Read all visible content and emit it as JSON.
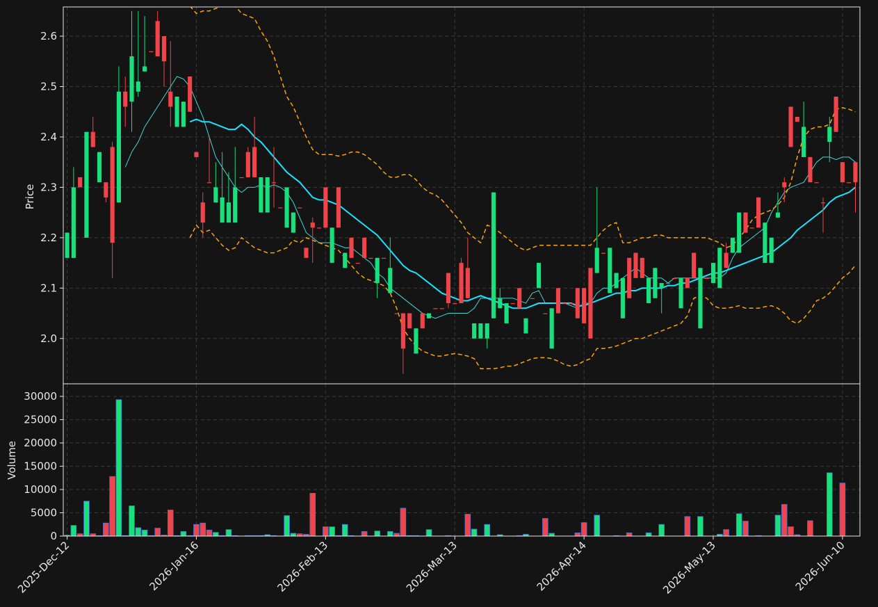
{
  "chart_data": {
    "type": "candlestick",
    "categories": [
      "2025-Dec-12",
      null,
      null,
      null,
      null,
      null,
      null,
      null,
      null,
      null,
      null,
      null,
      null,
      null,
      null,
      null,
      null,
      null,
      null,
      null,
      "2026-Jan-16",
      null,
      null,
      null,
      null,
      null,
      null,
      null,
      null,
      null,
      null,
      null,
      null,
      null,
      null,
      null,
      null,
      null,
      null,
      null,
      "2026-Feb-13",
      null,
      null,
      null,
      null,
      null,
      null,
      null,
      null,
      null,
      null,
      null,
      null,
      null,
      null,
      null,
      null,
      null,
      null,
      null,
      "2026-Mar-13",
      null,
      null,
      null,
      null,
      null,
      null,
      null,
      null,
      null,
      null,
      null,
      null,
      null,
      null,
      null,
      null,
      null,
      null,
      null,
      "2026-Apr-14",
      null,
      null,
      null,
      null,
      null,
      null,
      null,
      null,
      null,
      null,
      null,
      null,
      null,
      null,
      null,
      null,
      null,
      null,
      null,
      "2026-May-13",
      null,
      null,
      null,
      null,
      null,
      null,
      null,
      null,
      null,
      null,
      null,
      null,
      null,
      null,
      null,
      null,
      null,
      null,
      null,
      "2026-Jun-10",
      null,
      null
    ],
    "xlim": [
      -0.6,
      122.7
    ],
    "ylabel": "Price",
    "ylim": [
      1.91,
      2.658
    ],
    "yticks": [
      {
        "value": 2,
        "label": "2.0"
      },
      2.1,
      2.2,
      2.3,
      2.4,
      2.5,
      2.6
    ],
    "grid": true,
    "up_color": "#18e07d",
    "down_color": "#f0444a",
    "open": [
      2.16,
      2.16,
      2.32,
      2.2,
      2.41,
      2.31,
      2.31,
      2.38,
      2.27,
      2.49,
      2.47,
      2.49,
      2.53,
      2.57,
      2.63,
      2.6,
      2.49,
      2.42,
      2.42,
      2.52,
      2.37,
      2.27,
      2.31,
      2.27,
      2.23,
      2.23,
      2.23,
      2.32,
      2.37,
      2.38,
      2.25,
      2.25,
      2.31,
      2.26,
      2.22,
      2.21,
      2.26,
      2.18,
      2.23,
      2.22,
      2.3,
      2.15,
      2.3,
      2.14,
      2.2,
      2.15,
      2.2,
      2.16,
      2.11,
      2.16,
      2.09,
      2.05,
      2.05,
      2.05,
      1.97,
      2.05,
      2.04,
      2.06,
      2.06,
      2.13,
      2.07,
      2.15,
      2.14,
      2.0,
      2.0,
      2.0,
      2.04,
      2.06,
      2.03,
      2.07,
      2.1,
      2.01,
      2.08,
      2.1,
      2.05,
      1.98,
      2.1,
      2.07,
      2.07,
      2.1,
      2.1,
      2.14,
      2.13,
      2.17,
      2.09,
      2.1,
      2.04,
      2.16,
      2.17,
      2.16,
      2.07,
      2.08,
      2.1,
      2.11,
      2.12,
      2.06,
      2.12,
      2.17,
      2.02,
      2.12,
      2.11,
      2.1,
      2.17,
      2.17,
      2.17,
      2.25,
      2.22,
      2.28,
      2.15,
      2.15,
      2.24,
      2.31,
      2.46,
      2.44,
      2.36,
      2.36,
      2.31,
      2.27,
      2.39,
      2.48,
      2.35,
      2.31,
      2.35
    ],
    "high": [
      2.21,
      2.34,
      2.32,
      2.41,
      2.44,
      2.37,
      2.31,
      2.39,
      2.54,
      2.52,
      2.65,
      2.65,
      2.64,
      2.57,
      2.65,
      2.6,
      2.59,
      2.48,
      2.47,
      2.52,
      2.37,
      2.29,
      2.4,
      2.35,
      2.37,
      2.33,
      2.38,
      2.32,
      2.38,
      2.44,
      2.32,
      2.32,
      2.38,
      2.26,
      2.3,
      2.25,
      2.26,
      2.18,
      2.24,
      2.22,
      2.3,
      2.22,
      2.3,
      2.17,
      2.2,
      2.15,
      2.2,
      2.16,
      2.16,
      2.16,
      2.2,
      2.05,
      2.05,
      2.05,
      2.02,
      2.05,
      2.05,
      2.06,
      2.06,
      2.13,
      2.07,
      2.16,
      2.2,
      2.03,
      2.03,
      2.03,
      2.29,
      2.1,
      2.07,
      2.07,
      2.1,
      2.04,
      2.08,
      2.15,
      2.05,
      2.06,
      2.1,
      2.07,
      2.07,
      2.1,
      2.1,
      2.14,
      2.3,
      2.17,
      2.18,
      2.13,
      2.12,
      2.16,
      2.17,
      2.16,
      2.12,
      2.14,
      2.11,
      2.11,
      2.12,
      2.12,
      2.12,
      2.17,
      2.14,
      2.12,
      2.15,
      2.18,
      2.19,
      2.2,
      2.25,
      2.25,
      2.22,
      2.28,
      2.23,
      2.2,
      2.29,
      2.32,
      2.46,
      2.44,
      2.47,
      2.36,
      2.31,
      2.28,
      2.44,
      2.48,
      2.35,
      2.31,
      2.35
    ],
    "low": [
      2.16,
      2.16,
      2.3,
      2.2,
      2.38,
      2.31,
      2.27,
      2.12,
      2.27,
      2.42,
      2.41,
      2.48,
      2.53,
      2.57,
      2.56,
      2.5,
      2.42,
      2.42,
      2.42,
      2.45,
      2.36,
      2.2,
      2.31,
      2.27,
      2.23,
      2.23,
      2.23,
      2.32,
      2.32,
      2.32,
      2.25,
      2.25,
      2.26,
      2.26,
      2.22,
      2.21,
      2.26,
      2.16,
      2.15,
      2.22,
      2.22,
      2.15,
      2.22,
      2.14,
      2.16,
      2.15,
      2.16,
      2.16,
      2.08,
      2.16,
      2.09,
      2.05,
      1.93,
      2.02,
      1.97,
      2.02,
      2.04,
      2.06,
      2.06,
      2.06,
      2.07,
      2.07,
      2.08,
      2.0,
      2.0,
      1.98,
      2.04,
      2.06,
      2.03,
      2.07,
      2.06,
      2.01,
      2.08,
      2.1,
      2.05,
      1.98,
      2.05,
      2.07,
      2.07,
      2.04,
      2.03,
      2.0,
      2.13,
      2.17,
      2.09,
      2.1,
      2.04,
      2.08,
      2.12,
      2.12,
      2.07,
      2.08,
      2.05,
      2.11,
      2.12,
      2.06,
      2.1,
      2.12,
      2.02,
      2.12,
      2.11,
      2.1,
      2.14,
      2.17,
      2.17,
      2.21,
      2.22,
      2.22,
      2.15,
      2.15,
      2.24,
      2.27,
      2.38,
      2.43,
      2.36,
      2.31,
      2.31,
      2.21,
      2.35,
      2.41,
      2.31,
      2.31,
      2.25
    ],
    "close": [
      2.21,
      2.3,
      2.3,
      2.41,
      2.38,
      2.37,
      2.28,
      2.19,
      2.49,
      2.46,
      2.56,
      2.51,
      2.54,
      2.57,
      2.56,
      2.55,
      2.46,
      2.48,
      2.47,
      2.45,
      2.36,
      2.23,
      2.31,
      2.3,
      2.28,
      2.27,
      2.3,
      2.32,
      2.32,
      2.32,
      2.32,
      2.32,
      2.31,
      2.26,
      2.3,
      2.25,
      2.26,
      2.16,
      2.22,
      2.22,
      2.22,
      2.22,
      2.22,
      2.17,
      2.16,
      2.15,
      2.16,
      2.16,
      2.16,
      2.16,
      2.14,
      2.05,
      1.98,
      2.02,
      2.02,
      2.02,
      2.05,
      2.06,
      2.06,
      2.07,
      2.07,
      2.07,
      2.08,
      2.03,
      2.03,
      2.03,
      2.29,
      2.08,
      2.07,
      2.07,
      2.06,
      2.04,
      2.08,
      2.15,
      2.05,
      2.06,
      2.05,
      2.07,
      2.07,
      2.04,
      2.03,
      2.0,
      2.18,
      2.17,
      2.18,
      2.13,
      2.12,
      2.08,
      2.12,
      2.12,
      2.12,
      2.14,
      2.11,
      2.11,
      2.12,
      2.12,
      2.1,
      2.12,
      2.14,
      2.12,
      2.15,
      2.18,
      2.14,
      2.2,
      2.25,
      2.21,
      2.22,
      2.22,
      2.23,
      2.2,
      2.25,
      2.3,
      2.38,
      2.43,
      2.42,
      2.31,
      2.31,
      2.27,
      2.42,
      2.41,
      2.31,
      2.31,
      2.31
    ],
    "lines": [
      {
        "color": "#3fd8d8",
        "width": 1,
        "dashed": false,
        "values": [
          null,
          null,
          null,
          null,
          null,
          null,
          null,
          null,
          null,
          2.34,
          2.37,
          2.39,
          2.42,
          2.44,
          2.46,
          2.48,
          2.5,
          2.52,
          2.515,
          2.5,
          2.47,
          2.44,
          2.4,
          2.36,
          2.34,
          2.32,
          2.3,
          2.29,
          2.3,
          2.3,
          2.305,
          2.3,
          2.305,
          2.3,
          2.29,
          2.27,
          2.24,
          2.21,
          2.2,
          2.19,
          2.19,
          2.19,
          2.185,
          2.18,
          2.18,
          2.17,
          2.16,
          2.15,
          2.13,
          2.12,
          2.1,
          2.09,
          2.08,
          2.07,
          2.06,
          2.05,
          2.045,
          2.04,
          2.045,
          2.05,
          2.05,
          2.05,
          2.05,
          2.06,
          2.08,
          2.08,
          2.08,
          2.08,
          2.08,
          2.08,
          2.075,
          2.07,
          2.09,
          2.095,
          2.07,
          2.07,
          2.07,
          2.07,
          2.065,
          2.06,
          2.07,
          2.07,
          2.09,
          2.1,
          2.1,
          2.11,
          2.12,
          2.13,
          2.14,
          2.13,
          2.12,
          2.12,
          2.12,
          2.11,
          2.12,
          2.12,
          2.12,
          2.12,
          2.12,
          2.12,
          2.12,
          2.12,
          2.13,
          2.16,
          2.18,
          2.19,
          2.2,
          2.21,
          2.22,
          2.25,
          2.27,
          2.29,
          2.3,
          2.305,
          2.31,
          2.33,
          2.35,
          2.36,
          2.36,
          2.355,
          2.36,
          2.36,
          2.35
        ]
      },
      {
        "color": "#19e4ff",
        "width": 2,
        "dashed": false,
        "values": [
          null,
          null,
          null,
          null,
          null,
          null,
          null,
          null,
          null,
          null,
          null,
          null,
          null,
          null,
          null,
          null,
          null,
          null,
          null,
          2.43,
          2.435,
          2.43,
          2.43,
          2.425,
          2.42,
          2.415,
          2.415,
          2.425,
          2.415,
          2.4,
          2.39,
          2.375,
          2.36,
          2.345,
          2.33,
          2.32,
          2.31,
          2.295,
          2.28,
          2.275,
          2.275,
          2.27,
          2.265,
          2.255,
          2.245,
          2.235,
          2.225,
          2.215,
          2.205,
          2.19,
          2.175,
          2.16,
          2.145,
          2.135,
          2.13,
          2.12,
          2.11,
          2.1,
          2.09,
          2.085,
          2.08,
          2.075,
          2.075,
          2.08,
          2.085,
          2.08,
          2.075,
          2.07,
          2.065,
          2.06,
          2.06,
          2.06,
          2.065,
          2.07,
          2.07,
          2.07,
          2.07,
          2.07,
          2.07,
          2.065,
          2.065,
          2.07,
          2.075,
          2.08,
          2.085,
          2.09,
          2.09,
          2.095,
          2.095,
          2.1,
          2.1,
          2.1,
          2.1,
          2.105,
          2.105,
          2.11,
          2.11,
          2.115,
          2.12,
          2.125,
          2.13,
          2.13,
          2.135,
          2.14,
          2.145,
          2.15,
          2.155,
          2.16,
          2.165,
          2.17,
          2.18,
          2.19,
          2.2,
          2.215,
          2.225,
          2.235,
          2.245,
          2.255,
          2.27,
          2.28,
          2.285,
          2.29,
          2.3
        ]
      },
      {
        "color": "#ffa500",
        "width": 1.5,
        "dashed": true,
        "values": [
          null,
          null,
          null,
          null,
          null,
          null,
          null,
          null,
          null,
          null,
          null,
          null,
          null,
          null,
          null,
          null,
          null,
          null,
          null,
          2.66,
          2.645,
          2.65,
          2.65,
          2.655,
          2.66,
          2.665,
          2.66,
          2.645,
          2.64,
          2.635,
          2.61,
          2.59,
          2.56,
          2.52,
          2.48,
          2.46,
          2.43,
          2.4,
          2.375,
          2.365,
          2.365,
          2.365,
          2.362,
          2.365,
          2.37,
          2.37,
          2.365,
          2.355,
          2.345,
          2.33,
          2.32,
          2.32,
          2.325,
          2.325,
          2.315,
          2.3,
          2.29,
          2.285,
          2.275,
          2.26,
          2.245,
          2.23,
          2.21,
          2.2,
          2.19,
          2.225,
          2.22,
          2.21,
          2.2,
          2.19,
          2.18,
          2.175,
          2.18,
          2.185,
          2.185,
          2.185,
          2.185,
          2.185,
          2.185,
          2.185,
          2.185,
          2.185,
          2.2,
          2.215,
          2.225,
          2.23,
          2.19,
          2.19,
          2.195,
          2.2,
          2.2,
          2.205,
          2.205,
          2.2,
          2.2,
          2.2,
          2.2,
          2.2,
          2.2,
          2.2,
          2.195,
          2.19,
          2.18,
          2.185,
          2.2,
          2.215,
          2.235,
          2.245,
          2.25,
          2.255,
          2.265,
          2.28,
          2.31,
          2.36,
          2.4,
          2.415,
          2.42,
          2.42,
          2.425,
          2.455,
          2.458,
          2.455,
          2.45
        ]
      },
      {
        "color": "#ffa500",
        "width": 1.5,
        "dashed": true,
        "values": [
          null,
          null,
          null,
          null,
          null,
          null,
          null,
          null,
          null,
          null,
          null,
          null,
          null,
          null,
          null,
          null,
          null,
          null,
          null,
          2.2,
          2.225,
          2.21,
          2.215,
          2.2,
          2.185,
          2.175,
          2.18,
          2.2,
          2.19,
          2.18,
          2.175,
          2.17,
          2.17,
          2.175,
          2.18,
          2.195,
          2.19,
          2.2,
          2.195,
          2.19,
          2.185,
          2.18,
          2.175,
          2.16,
          2.145,
          2.13,
          2.12,
          2.115,
          2.11,
          2.105,
          2.09,
          2.06,
          2.02,
          2.0,
          1.985,
          1.975,
          1.97,
          1.965,
          1.965,
          1.968,
          1.97,
          1.968,
          1.965,
          1.96,
          1.94,
          1.94,
          1.94,
          1.942,
          1.945,
          1.945,
          1.95,
          1.955,
          1.96,
          1.962,
          1.962,
          1.96,
          1.955,
          1.948,
          1.945,
          1.948,
          1.955,
          1.96,
          1.98,
          1.98,
          1.982,
          1.985,
          1.99,
          1.995,
          2.0,
          2.0,
          2.005,
          2.01,
          2.015,
          2.02,
          2.025,
          2.03,
          2.045,
          2.08,
          2.085,
          2.08,
          2.065,
          2.06,
          2.06,
          2.062,
          2.065,
          2.06,
          2.06,
          2.06,
          2.063,
          2.065,
          2.06,
          2.05,
          2.035,
          2.03,
          2.04,
          2.055,
          2.075,
          2.08,
          2.09,
          2.105,
          2.12,
          2.13,
          2.145
        ]
      }
    ],
    "volume": {
      "ylabel": "Volume",
      "ylim": [
        0,
        32700
      ],
      "yticks": [
        0,
        5000,
        10000,
        15000,
        20000,
        25000,
        30000
      ],
      "edge_color": "#4a6fd0",
      "values": [
        200,
        2300,
        500,
        7500,
        500,
        100,
        2800,
        12800,
        29300,
        100,
        6500,
        1800,
        1300,
        100,
        1700,
        200,
        5600,
        100,
        1000,
        100,
        2500,
        2800,
        1300,
        800,
        100,
        1400,
        100,
        0,
        100,
        100,
        100,
        300,
        100,
        0,
        4400,
        600,
        500,
        400,
        9200,
        0,
        2000,
        2000,
        100,
        2500,
        100,
        0,
        1000,
        0,
        1100,
        0,
        1000,
        600,
        6000,
        100,
        100,
        0,
        1400,
        0,
        0,
        100,
        0,
        0,
        4700,
        1500,
        0,
        2500,
        0,
        300,
        0,
        0,
        100,
        400,
        0,
        0,
        3800,
        600,
        0,
        0,
        0,
        700,
        2900,
        0,
        4500,
        0,
        0,
        100,
        0,
        700,
        0,
        0,
        700,
        0,
        2500,
        0,
        0,
        0,
        4200,
        0,
        4200,
        0,
        0,
        400,
        1400,
        0,
        4800,
        3200,
        0,
        100,
        0,
        0,
        4500,
        6800,
        2000,
        300,
        0,
        3300,
        0,
        0,
        13600,
        0,
        11400,
        0,
        0
      ]
    }
  }
}
